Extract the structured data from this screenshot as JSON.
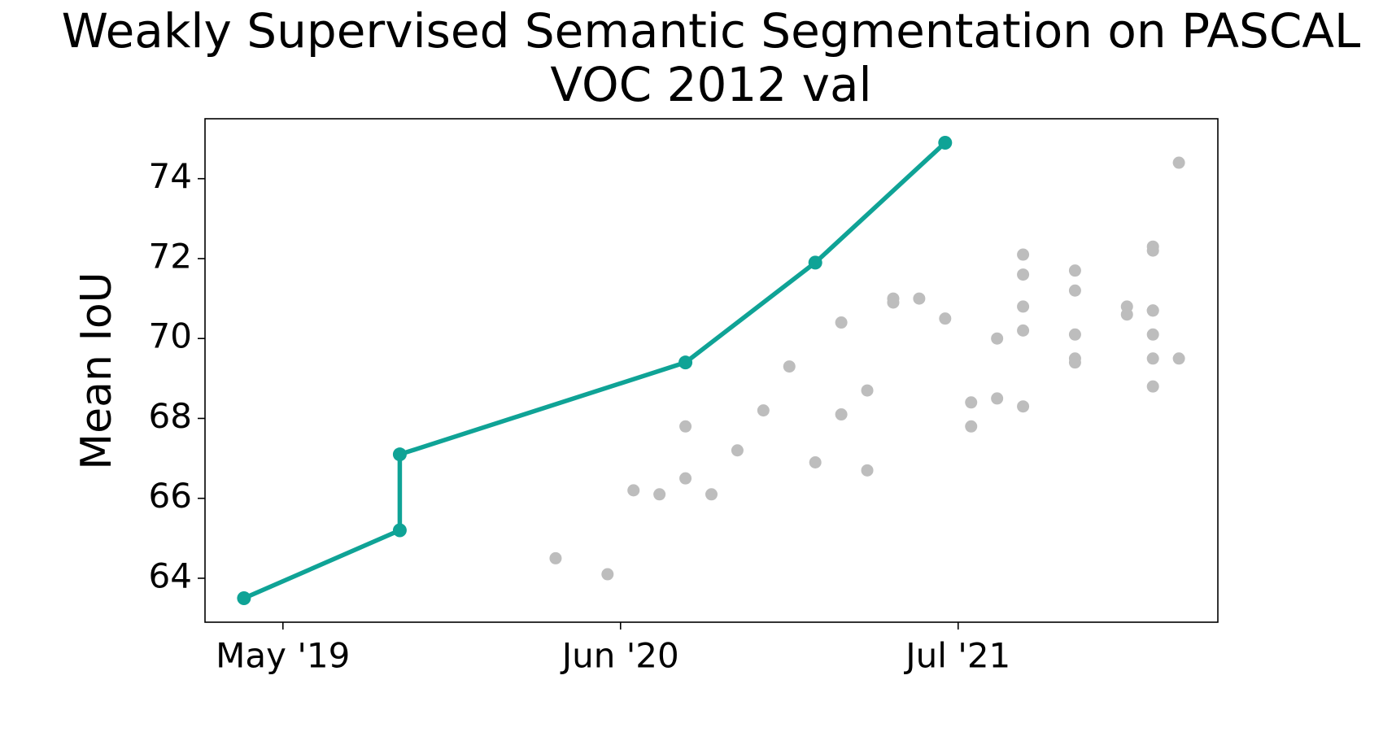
{
  "chart_data": {
    "type": "line",
    "title": [
      "Weakly Supervised Semantic Segmentation on PASCAL",
      "VOC 2012 val"
    ],
    "y_label": "Mean IoU",
    "xlim": [
      "2019-02",
      "2022-05"
    ],
    "xticks": [
      {
        "value": "2019-05",
        "label": "May '19"
      },
      {
        "value": "2020-06",
        "label": "Jun '20"
      },
      {
        "value": "2021-07",
        "label": "Jul '21"
      }
    ],
    "ylim": [
      62.9,
      75.5
    ],
    "yticks": [
      64,
      66,
      68,
      70,
      72,
      74
    ],
    "grid": false,
    "series": [
      {
        "type": "scatter",
        "color": "#bdbdbd",
        "x": [
          "2020-03",
          "2020-05",
          "2020-06",
          "2020-07",
          "2020-08",
          "2020-08",
          "2020-09",
          "2020-10",
          "2020-11",
          "2020-12",
          "2021-01",
          "2021-02",
          "2021-02",
          "2021-03",
          "2021-03",
          "2021-04",
          "2021-04",
          "2021-05",
          "2021-06",
          "2021-07",
          "2021-07",
          "2021-08",
          "2021-08",
          "2021-09",
          "2021-09",
          "2021-09",
          "2021-09",
          "2021-09",
          "2021-11",
          "2021-11",
          "2021-11",
          "2021-11",
          "2021-11",
          "2022-01",
          "2022-01",
          "2022-02",
          "2022-02",
          "2022-02",
          "2022-02",
          "2022-02",
          "2022-02",
          "2022-02",
          "2022-03",
          "2022-03"
        ],
        "values": [
          64.5,
          64.1,
          66.2,
          66.1,
          66.5,
          67.8,
          66.1,
          67.2,
          68.2,
          69.3,
          66.9,
          70.4,
          68.1,
          68.7,
          66.7,
          71.0,
          70.9,
          71.0,
          70.5,
          67.8,
          68.4,
          68.5,
          70.0,
          71.6,
          70.2,
          68.3,
          72.1,
          70.8,
          71.7,
          71.2,
          70.1,
          69.5,
          69.4,
          70.8,
          70.6,
          72.3,
          68.8,
          70.7,
          72.2,
          70.1,
          70.7,
          69.5,
          74.4,
          69.5
        ]
      },
      {
        "type": "line",
        "color": "#0fa396",
        "x": [
          "2019-03",
          "2019-09",
          "2019-09",
          "2020-08",
          "2021-01",
          "2021-06"
        ],
        "values": [
          63.5,
          65.2,
          67.1,
          69.4,
          71.9,
          74.9
        ]
      }
    ]
  }
}
